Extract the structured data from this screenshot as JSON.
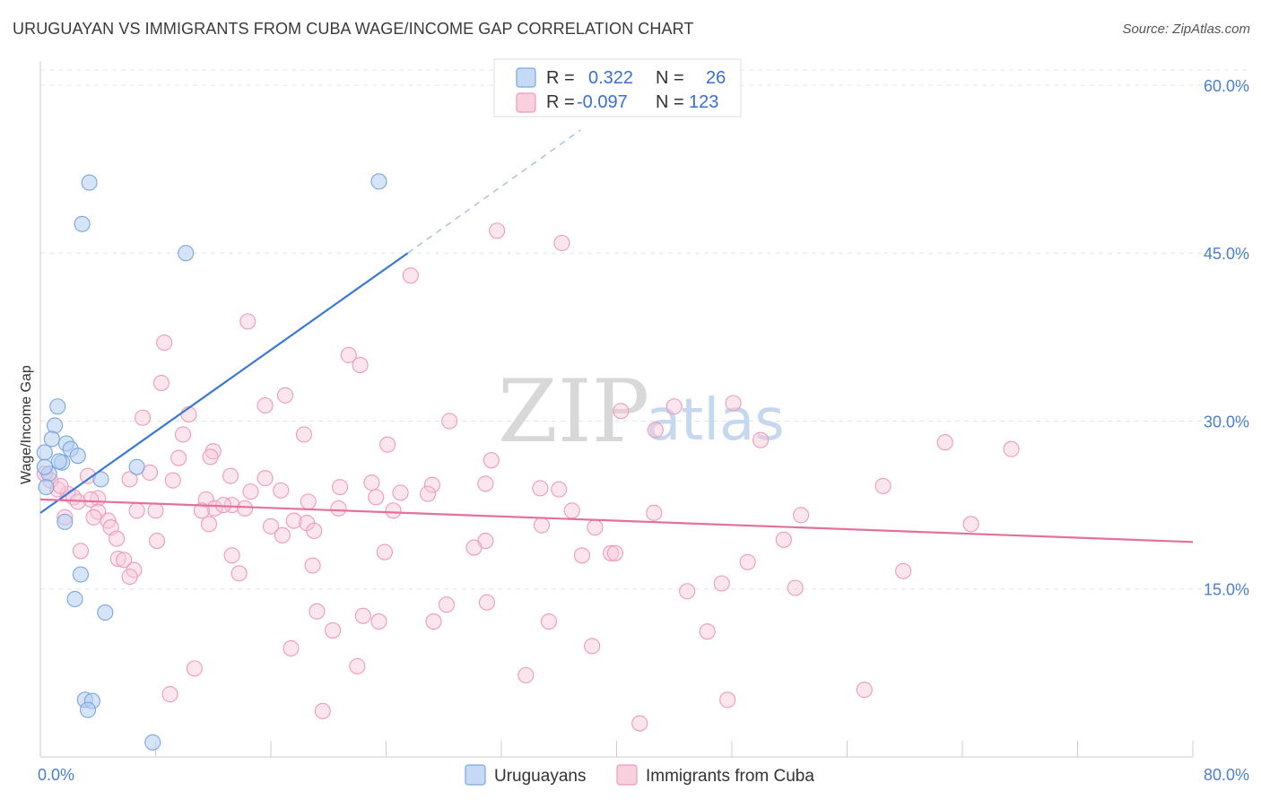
{
  "header": {
    "title": "URUGUAYAN VS IMMIGRANTS FROM CUBA WAGE/INCOME GAP CORRELATION CHART",
    "source": "Source: ZipAtlas.com"
  },
  "watermark": {
    "zip": "ZIP",
    "atlas": "atlas"
  },
  "legend_top": {
    "rows": [
      {
        "r_label": "R =",
        "r_value": "0.322",
        "n_label": "N =",
        "n_value": "26",
        "color": "#6d9fe0"
      },
      {
        "r_label": "R =",
        "r_value": "-0.097",
        "n_label": "N =",
        "n_value": "123",
        "color": "#ee8fb0"
      }
    ]
  },
  "legend_bottom": {
    "items": [
      {
        "label": "Uruguayans",
        "color": "#6d9fe0"
      },
      {
        "label": "Immigrants from Cuba",
        "color": "#ee8fb0"
      }
    ]
  },
  "chart_data": {
    "type": "scatter",
    "ylabel": "Wage/Income Gap",
    "xlim": [
      0,
      80
    ],
    "ylim": [
      0,
      62
    ],
    "x_ticks": [
      "0.0%",
      "80.0%"
    ],
    "y_ticks": [
      {
        "value": 15,
        "label": "15.0%"
      },
      {
        "value": 30,
        "label": "30.0%"
      },
      {
        "value": 45,
        "label": "45.0%"
      },
      {
        "value": 60,
        "label": "60.0%"
      }
    ],
    "grid": true,
    "series": [
      {
        "name": "Uruguayans",
        "color": "#6d9fe0",
        "points": [
          [
            3.4,
            51.3
          ],
          [
            2.9,
            47.6
          ],
          [
            10.1,
            45.0
          ],
          [
            23.5,
            51.4
          ],
          [
            1.2,
            31.3
          ],
          [
            1.0,
            29.6
          ],
          [
            0.8,
            28.4
          ],
          [
            1.8,
            28.0
          ],
          [
            2.1,
            27.5
          ],
          [
            0.3,
            27.2
          ],
          [
            2.6,
            26.9
          ],
          [
            1.5,
            26.3
          ],
          [
            1.3,
            26.4
          ],
          [
            0.6,
            25.3
          ],
          [
            0.3,
            25.9
          ],
          [
            4.2,
            24.8
          ],
          [
            6.7,
            25.9
          ],
          [
            0.4,
            24.1
          ],
          [
            1.7,
            21.0
          ],
          [
            2.8,
            16.3
          ],
          [
            2.4,
            14.1
          ],
          [
            4.5,
            12.9
          ],
          [
            3.1,
            5.1
          ],
          [
            3.6,
            5.0
          ],
          [
            3.3,
            4.2
          ],
          [
            7.8,
            1.3
          ]
        ],
        "trend": {
          "x1": 0,
          "y1": 21.8,
          "x2": 25.5,
          "y2": 45.0,
          "dash_to_x": 37.5,
          "dash_to_y": 56.0
        }
      },
      {
        "name": "Immigrants from Cuba",
        "color": "#ee8fb0",
        "points": [
          [
            31.7,
            47.0
          ],
          [
            36.2,
            45.9
          ],
          [
            25.7,
            43.0
          ],
          [
            14.4,
            38.9
          ],
          [
            8.6,
            37.0
          ],
          [
            21.4,
            35.9
          ],
          [
            22.2,
            35.0
          ],
          [
            8.4,
            33.4
          ],
          [
            17.0,
            32.3
          ],
          [
            15.6,
            31.4
          ],
          [
            10.3,
            30.6
          ],
          [
            7.1,
            30.3
          ],
          [
            28.4,
            30.0
          ],
          [
            40.3,
            30.9
          ],
          [
            44.0,
            31.3
          ],
          [
            48.1,
            31.6
          ],
          [
            42.7,
            29.2
          ],
          [
            50.0,
            28.3
          ],
          [
            62.8,
            28.1
          ],
          [
            67.4,
            27.5
          ],
          [
            18.3,
            28.8
          ],
          [
            24.1,
            27.9
          ],
          [
            9.9,
            28.8
          ],
          [
            12.0,
            27.3
          ],
          [
            11.8,
            26.8
          ],
          [
            9.6,
            26.7
          ],
          [
            31.3,
            26.5
          ],
          [
            7.6,
            25.4
          ],
          [
            3.3,
            25.1
          ],
          [
            6.2,
            24.8
          ],
          [
            13.2,
            25.1
          ],
          [
            15.6,
            24.9
          ],
          [
            9.2,
            24.7
          ],
          [
            27.2,
            24.3
          ],
          [
            23.0,
            24.5
          ],
          [
            30.9,
            24.4
          ],
          [
            20.8,
            24.1
          ],
          [
            36.0,
            23.9
          ],
          [
            34.7,
            24.0
          ],
          [
            58.5,
            24.2
          ],
          [
            1.9,
            23.5
          ],
          [
            4.0,
            23.1
          ],
          [
            2.3,
            23.2
          ],
          [
            14.6,
            23.7
          ],
          [
            16.7,
            23.8
          ],
          [
            25.0,
            23.6
          ],
          [
            26.9,
            23.5
          ],
          [
            11.5,
            23.0
          ],
          [
            23.3,
            23.2
          ],
          [
            18.6,
            22.8
          ],
          [
            12.1,
            22.2
          ],
          [
            13.3,
            22.5
          ],
          [
            12.7,
            22.5
          ],
          [
            3.5,
            23.0
          ],
          [
            1.2,
            23.9
          ],
          [
            0.7,
            24.7
          ],
          [
            0.3,
            25.3
          ],
          [
            1.4,
            24.2
          ],
          [
            4.0,
            21.9
          ],
          [
            6.7,
            22.0
          ],
          [
            8.0,
            22.0
          ],
          [
            11.2,
            22.0
          ],
          [
            14.2,
            22.2
          ],
          [
            20.7,
            22.2
          ],
          [
            24.5,
            22.0
          ],
          [
            36.9,
            22.0
          ],
          [
            42.6,
            21.8
          ],
          [
            52.8,
            21.6
          ],
          [
            1.7,
            21.4
          ],
          [
            4.7,
            21.1
          ],
          [
            2.6,
            22.8
          ],
          [
            3.7,
            21.4
          ],
          [
            17.6,
            21.1
          ],
          [
            18.5,
            20.9
          ],
          [
            11.7,
            20.8
          ],
          [
            16.0,
            20.6
          ],
          [
            19.0,
            20.2
          ],
          [
            34.8,
            20.7
          ],
          [
            4.9,
            20.5
          ],
          [
            38.5,
            20.5
          ],
          [
            64.6,
            20.8
          ],
          [
            5.3,
            19.5
          ],
          [
            8.1,
            19.3
          ],
          [
            16.8,
            19.8
          ],
          [
            30.9,
            19.3
          ],
          [
            51.6,
            19.4
          ],
          [
            30.1,
            18.7
          ],
          [
            2.8,
            18.4
          ],
          [
            13.3,
            18.0
          ],
          [
            23.9,
            18.3
          ],
          [
            37.6,
            18.0
          ],
          [
            39.6,
            18.2
          ],
          [
            39.9,
            18.2
          ],
          [
            5.4,
            17.7
          ],
          [
            5.8,
            17.6
          ],
          [
            18.9,
            17.1
          ],
          [
            49.1,
            17.4
          ],
          [
            6.5,
            16.7
          ],
          [
            6.2,
            16.1
          ],
          [
            13.8,
            16.4
          ],
          [
            59.9,
            16.6
          ],
          [
            47.3,
            15.5
          ],
          [
            44.9,
            14.8
          ],
          [
            52.4,
            15.1
          ],
          [
            28.2,
            13.6
          ],
          [
            31.0,
            13.8
          ],
          [
            19.2,
            13.0
          ],
          [
            22.4,
            12.6
          ],
          [
            23.5,
            12.1
          ],
          [
            27.3,
            12.1
          ],
          [
            35.3,
            12.1
          ],
          [
            20.3,
            11.3
          ],
          [
            46.3,
            11.2
          ],
          [
            17.4,
            9.7
          ],
          [
            38.3,
            9.9
          ],
          [
            10.7,
            7.9
          ],
          [
            22.0,
            8.1
          ],
          [
            33.7,
            7.3
          ],
          [
            9.0,
            5.6
          ],
          [
            57.2,
            6.0
          ],
          [
            47.7,
            5.1
          ],
          [
            19.6,
            4.1
          ],
          [
            41.6,
            3.0
          ]
        ],
        "trend": {
          "x1": 0,
          "y1": 23.0,
          "x2": 80,
          "y2": 19.2
        }
      }
    ]
  }
}
